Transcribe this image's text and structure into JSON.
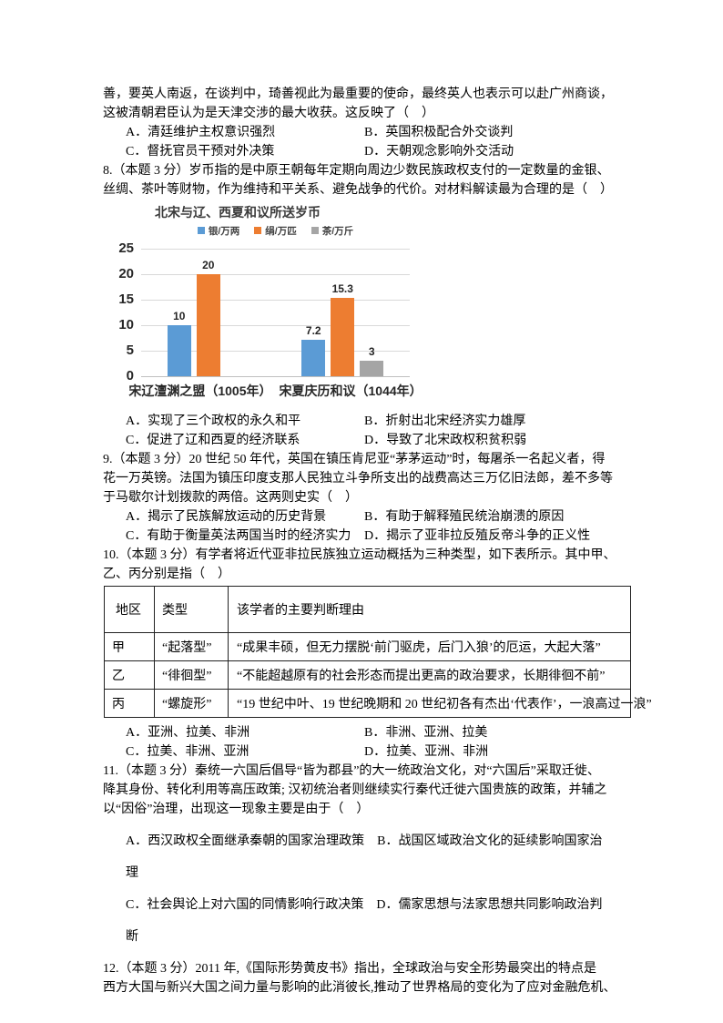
{
  "q7": {
    "stem_lines": [
      "善，要英人南返，在谈判中，琦善视此为最重要的使命，最终英人也表示可以赴广州商谈，",
      "这被清朝君臣认为是天津交涉的最大收获。这反映了（　）"
    ],
    "option_rows": [
      {
        "left": "A．清廷维护主权意识强烈",
        "right": "B．英国积极配合外交谈判"
      },
      {
        "left": "C．督抚官员干预对外决策",
        "right": "D．天朝观念影响外交活动"
      }
    ]
  },
  "q8": {
    "stem_lines": [
      "8.（本题 3 分）岁币指的是中原王朝每年定期向周边少数民族政权支付的一定数量的金银、",
      "丝绸、茶叶等财物，作为维持和平关系、避免战争的代价。对材料解读最为合理的是（　）"
    ],
    "option_rows": [
      {
        "left": "A．实现了三个政权的永久和平",
        "right": "B．折射出北宋经济实力雄厚"
      },
      {
        "left": "C．促进了辽和西夏的经济联系",
        "right": "D．导致了北宋政权积贫积弱"
      }
    ]
  },
  "chart_data": {
    "type": "bar",
    "title": "北宋与辽、西夏和议所送岁币",
    "categories": [
      "宋辽澶渊之盟（1005年）",
      "宋夏庆历和议（1044年）"
    ],
    "series": [
      {
        "name": "银/万两",
        "color": "#5B9BD5",
        "values": [
          10,
          7.2
        ]
      },
      {
        "name": "绢/万匹",
        "color": "#ED7D31",
        "values": [
          20,
          15.3
        ]
      },
      {
        "name": "茶/万斤",
        "color": "#A5A5A5",
        "values": [
          null,
          3
        ]
      }
    ],
    "ylim": [
      0,
      25
    ],
    "yticks": [
      0,
      5,
      10,
      15,
      20,
      25
    ],
    "grid": true,
    "legend_position": "top"
  },
  "q9": {
    "stem_lines": [
      "9.（本题 3 分）20 世纪 50 年代，英国在镇压肯尼亚“茅茅运动”时，每屠杀一名起义者，得",
      "花一万英镑。法国为镇压印度支那人民独立斗争所支出的战费高达三万亿旧法郎，差不多等",
      "于马歇尔计划拨款的两倍。这两则史实（　）"
    ],
    "option_rows": [
      {
        "left": "A．揭示了民族解放运动的历史背景",
        "right": "B．有助于解释殖民统治崩溃的原因"
      },
      {
        "left": "C．有助于衡量英法两国当时的经济实力",
        "right": "D．揭示了亚非拉反殖反帝斗争的正义性"
      }
    ]
  },
  "q10": {
    "stem_lines": [
      "10.（本题 3 分）有学者将近代亚非拉民族独立运动概括为三种类型，如下表所示。其中甲、",
      "乙、丙分别是指（　）"
    ],
    "option_rows": [
      {
        "left": "A．亚洲、拉美、非洲",
        "right": "B．非洲、亚洲、拉美"
      },
      {
        "left": "C．拉美、非洲、亚洲",
        "right": "D．拉美、亚洲、非洲"
      }
    ]
  },
  "table10": {
    "headers": [
      "地区",
      "类型",
      "该学者的主要判断理由"
    ],
    "rows": [
      {
        "region": "甲",
        "kind": "“起落型”",
        "reason": "“成果丰硕，但无力摆脱‘前门驱虎，后门入狼’的厄运，大起大落”"
      },
      {
        "region": "乙",
        "kind": "“徘徊型”",
        "reason": "“不能超越原有的社会形态而提出更高的政治要求，长期徘徊不前”"
      },
      {
        "region": "丙",
        "kind": "“螺旋形”",
        "reason": "“19 世纪中叶、19 世纪晚期和 20 世纪初各有杰出‘代表作’，一浪高过一浪”"
      }
    ]
  },
  "q11": {
    "stem_lines": [
      "11.（本题 3 分）秦统一六国后倡导“皆为郡县”的大一统政治文化，对“六国后”采取迁徙、",
      "降其身份、转化利用等高压政策; 汉初统治者则继续实行秦代迁徙六国贵族的政策，并辅之",
      "以“因俗”治理，出现这一现象主要是由于（　）"
    ],
    "option_lines": [
      "A．西汉政权全面继承秦朝的国家治理政策　B．战国区域政治文化的延续影响国家治",
      "理",
      "C．社会舆论上对六国的同情影响行政决策　D．儒家思想与法家思想共同影响政治判",
      "断"
    ]
  },
  "q12": {
    "stem_lines": [
      "12.（本题 3 分）2011 年,《国际形势黄皮书》指出，全球政治与安全形势最突出的特点是",
      "西方大国与新兴大国之间力量与影响的此消彼长,推动了世界格局的变化为了应对金融危机、"
    ]
  }
}
